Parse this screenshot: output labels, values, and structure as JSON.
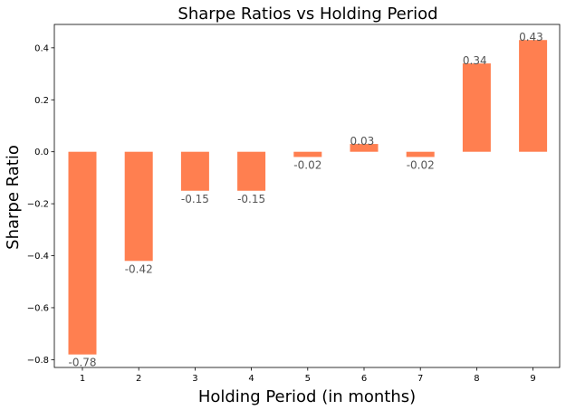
{
  "chart_data": {
    "type": "bar",
    "title": "Sharpe Ratios vs Holding Period",
    "xlabel": "Holding Period (in months)",
    "ylabel": "Sharpe Ratio",
    "categories": [
      "1",
      "2",
      "3",
      "4",
      "5",
      "6",
      "7",
      "8",
      "9"
    ],
    "values": [
      -0.78,
      -0.42,
      -0.15,
      -0.15,
      -0.02,
      0.03,
      -0.02,
      0.34,
      0.43
    ],
    "data_labels": [
      "-0.78",
      "-0.42",
      "-0.15",
      "-0.15",
      "-0.02",
      "0.03",
      "-0.02",
      "0.34",
      "0.43"
    ],
    "ylim": [
      -0.83,
      0.49
    ],
    "yticks": [
      -0.8,
      -0.6,
      -0.4,
      -0.2,
      0.0,
      0.2,
      0.4
    ],
    "ytick_labels": [
      "−0.8",
      "−0.6",
      "−0.4",
      "−0.2",
      "0.0",
      "0.2",
      "0.4"
    ],
    "grid": false,
    "legend": "none",
    "bar_color": "#ff7f50",
    "label_color": "#555555"
  }
}
